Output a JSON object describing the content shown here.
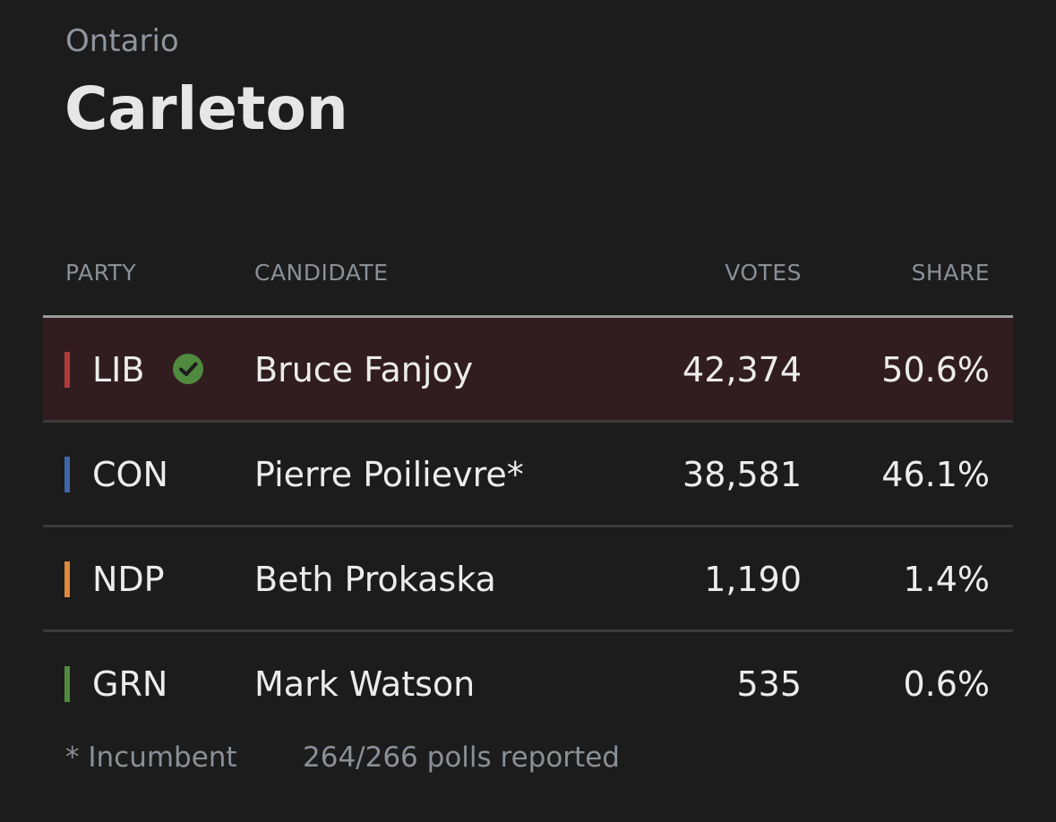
{
  "header": {
    "province": "Ontario",
    "riding": "Carleton"
  },
  "columns": {
    "party": "PARTY",
    "candidate": "CANDIDATE",
    "votes": "VOTES",
    "share": "SHARE"
  },
  "results": [
    {
      "party": "LIB",
      "candidate": "Bruce Fanjoy",
      "votes": "42,374",
      "share": "50.6%",
      "color": "#b03a3a",
      "winner": true,
      "icon": "check-circle-icon"
    },
    {
      "party": "CON",
      "candidate": "Pierre Poilievre*",
      "votes": "38,581",
      "share": "46.1%",
      "color": "#3f66a8",
      "winner": false
    },
    {
      "party": "NDP",
      "candidate": "Beth Prokaska",
      "votes": "1,190",
      "share": "1.4%",
      "color": "#d98a3a",
      "winner": false
    },
    {
      "party": "GRN",
      "candidate": "Mark Watson",
      "votes": "535",
      "share": "0.6%",
      "color": "#4f8a3e",
      "winner": false
    }
  ],
  "footer": {
    "incumbent_note": "* Incumbent",
    "polls_reported": "264/266 polls reported"
  },
  "colors": {
    "background": "#1c1c1c",
    "winner_row": "#311d1f",
    "muted_text": "#8a9096",
    "check": "#4f8a3e"
  }
}
